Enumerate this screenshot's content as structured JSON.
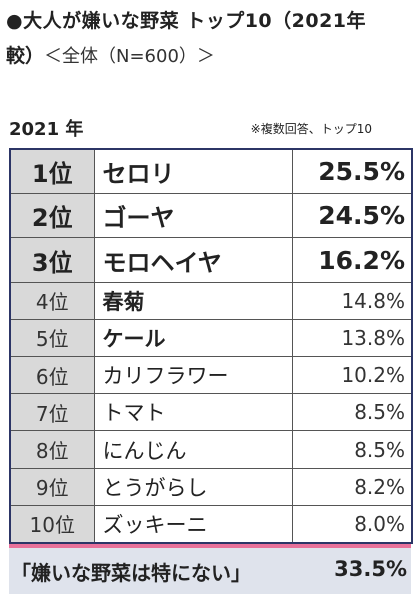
{
  "heading": {
    "line1": "●大人が嫌いな野菜 トップ10（2021年",
    "line2_bold": "較）",
    "line2_normal": "＜全体（N=600）＞"
  },
  "year_label": "2021 年",
  "note": "※複数回答、トップ10",
  "rows": [
    {
      "rank": "1位",
      "name": "セロリ",
      "pct": "25.5%"
    },
    {
      "rank": "2位",
      "name": "ゴーヤ",
      "pct": "24.5%"
    },
    {
      "rank": "3位",
      "name": "モロヘイヤ",
      "pct": "16.2%"
    },
    {
      "rank": "4位",
      "name": "春菊",
      "pct": "14.8%"
    },
    {
      "rank": "5位",
      "name": "ケール",
      "pct": "13.8%"
    },
    {
      "rank": "6位",
      "name": "カリフラワー",
      "pct": "10.2%"
    },
    {
      "rank": "7位",
      "name": "トマト",
      "pct": "8.5%"
    },
    {
      "rank": "8位",
      "name": "にんじん",
      "pct": "8.5%"
    },
    {
      "rank": "9位",
      "name": "とうがらし",
      "pct": "8.2%"
    },
    {
      "rank": "10位",
      "name": "ズッキーニ",
      "pct": "8.0%"
    }
  ],
  "footer": {
    "label": "「嫌いな野菜は特にない」",
    "pct": "33.5%"
  },
  "colors": {
    "rank_cell_bg": "#d9d9d9",
    "table_border": "#2c3566",
    "highlight_red": "#e60012",
    "footer_bg": "#dfe3ec",
    "footer_top_border": "#e8719a"
  }
}
